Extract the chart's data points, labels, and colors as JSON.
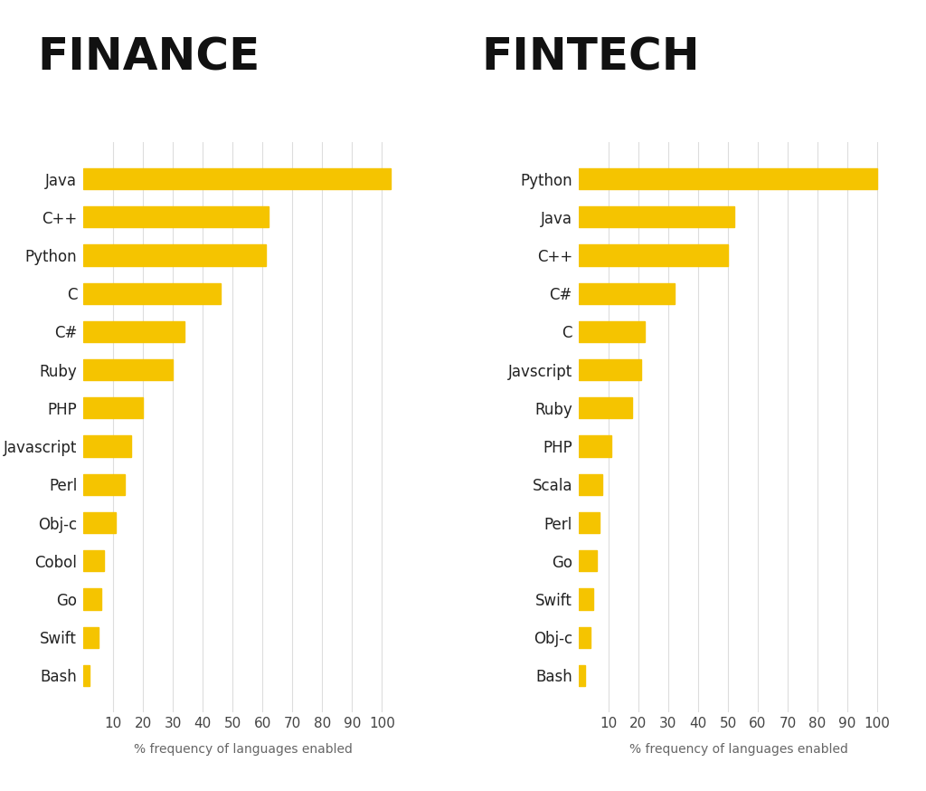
{
  "finance": {
    "title": "FINANCE",
    "categories": [
      "Java",
      "C++",
      "Python",
      "C",
      "C#",
      "Ruby",
      "PHP",
      "Javascript",
      "Perl",
      "Obj-c",
      "Cobol",
      "Go",
      "Swift",
      "Bash"
    ],
    "values": [
      103,
      62,
      61,
      46,
      34,
      30,
      20,
      16,
      14,
      11,
      7,
      6,
      5,
      2
    ]
  },
  "fintech": {
    "title": "FINTECH",
    "categories": [
      "Python",
      "Java",
      "C++",
      "C#",
      "C",
      "Javscript",
      "Ruby",
      "PHP",
      "Scala",
      "Perl",
      "Go",
      "Swift",
      "Obj-c",
      "Bash"
    ],
    "values": [
      100,
      52,
      50,
      32,
      22,
      21,
      18,
      11,
      8,
      7,
      6,
      5,
      4,
      2
    ]
  },
  "bar_color": "#F5C400",
  "background_color": "#FFFFFF",
  "grid_color": "#DDDDDD",
  "title_fontsize": 36,
  "label_fontsize": 12,
  "tick_fontsize": 11,
  "xlabel_fontsize": 10,
  "xlabel": "% frequency of languages enabled",
  "xlim": [
    0,
    107
  ],
  "xticks": [
    10,
    20,
    30,
    40,
    50,
    60,
    70,
    80,
    90,
    100
  ]
}
